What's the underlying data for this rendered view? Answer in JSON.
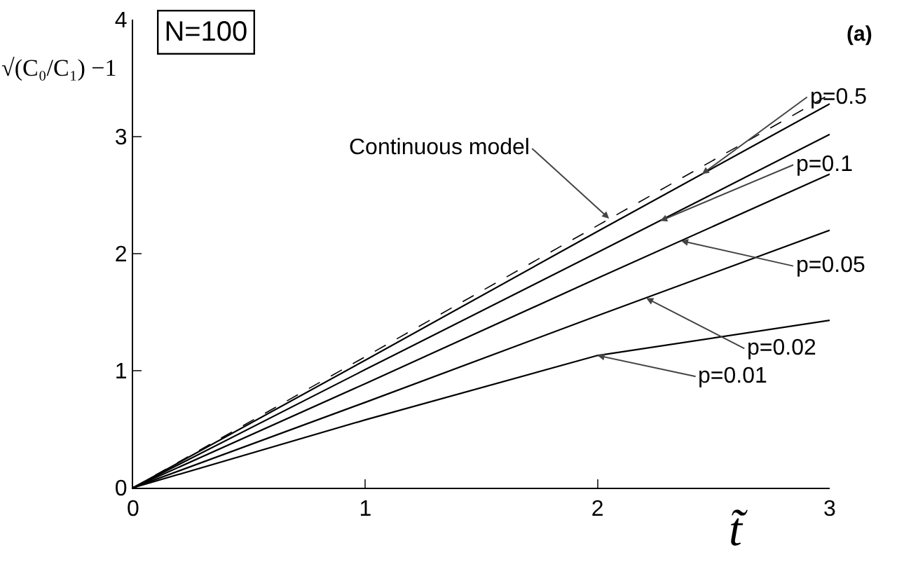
{
  "chart_data": {
    "type": "line",
    "title": "N=100",
    "xlabel": "t̃",
    "ylabel": "√(C₀/C₁) −1",
    "x": [
      0,
      1,
      2,
      3
    ],
    "series": [
      {
        "color": "#000000",
        "line_style": "dashed",
        "values": [
          0,
          1.12,
          2.24,
          3.36
        ]
      },
      {
        "color": "#000000",
        "values": [
          0,
          1.09,
          2.19,
          3.28
        ]
      },
      {
        "color": "#000000",
        "values": [
          0,
          1.01,
          2.01,
          3.02
        ]
      },
      {
        "color": "#000000",
        "values": [
          0,
          0.89,
          1.79,
          2.68
        ]
      },
      {
        "color": "#000000",
        "values": [
          0,
          0.73,
          1.47,
          2.2
        ]
      },
      {
        "color": "#000000",
        "values": [
          0,
          0.58,
          1.13,
          1.43
        ]
      }
    ],
    "annotations": [
      {
        "text": "Continuous model",
        "x": 2.05,
        "y": 2.3
      },
      {
        "text": "p=0.5",
        "x": 2.45,
        "y": 2.68
      },
      {
        "text": "p=0.1",
        "x": 2.27,
        "y": 2.28
      },
      {
        "text": "p=0.05",
        "x": 2.36,
        "y": 2.11
      },
      {
        "text": "p=0.02",
        "x": 2.21,
        "y": 1.62
      },
      {
        "text": "p=0.01",
        "x": 2.0,
        "y": 1.13
      },
      "(a)"
    ],
    "xlim": [
      0,
      3
    ],
    "ylim": [
      0,
      4
    ],
    "xticks": [
      0,
      1,
      2,
      3
    ],
    "yticks": [
      0,
      1,
      2,
      3,
      4
    ],
    "line_style": "solid"
  }
}
